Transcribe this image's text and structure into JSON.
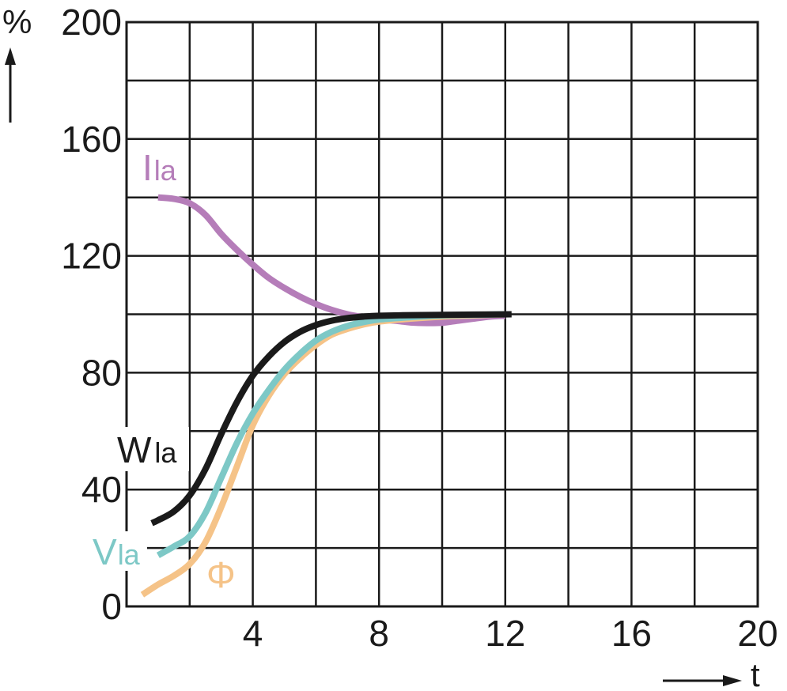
{
  "chart_data": {
    "type": "line",
    "title": "",
    "ylabel": "%",
    "xlabel": "t",
    "xlim": [
      0,
      20
    ],
    "ylim": [
      0,
      200
    ],
    "grid": true,
    "x_ticks": [
      4,
      8,
      12,
      16,
      20
    ],
    "x_tick_labels": [
      "4",
      "8",
      "12",
      "16",
      "20"
    ],
    "y_ticks": [
      0,
      40,
      80,
      120,
      160,
      200
    ],
    "y_tick_labels": [
      "0",
      "40",
      "80",
      "120",
      "160",
      "200"
    ],
    "series": [
      {
        "key": "i",
        "label_main": "I",
        "label_sub": "la",
        "color": "#b57db9",
        "x": [
          1.0,
          1.5,
          2.0,
          2.5,
          3.0,
          3.5,
          4.0,
          4.5,
          5.0,
          5.5,
          6.0,
          6.5,
          7.0,
          7.5,
          8.0,
          8.5,
          9.0,
          9.5,
          10.0,
          10.5,
          11.0,
          11.5,
          12.0
        ],
        "y": [
          140,
          139.5,
          138,
          134,
          127.5,
          122,
          117,
          112.5,
          109,
          106,
          103.5,
          101.5,
          100,
          99,
          98.2,
          97.8,
          97.2,
          97.0,
          97.1,
          97.8,
          98.5,
          99.2,
          99.5
        ]
      },
      {
        "key": "phi",
        "label_main": "Φ",
        "label_sub": "",
        "color": "#f5c388",
        "x": [
          0.5,
          1.0,
          1.5,
          2.0,
          2.5,
          3.0,
          3.5,
          4.0,
          4.5,
          5.0,
          5.5,
          6.0,
          6.5,
          7.0,
          7.5,
          8.0,
          9.0,
          10.0,
          11.0,
          12.0
        ],
        "y": [
          4,
          7.5,
          10.5,
          14.5,
          22,
          34,
          48,
          62,
          72,
          79.5,
          85,
          89.5,
          93,
          95,
          96.5,
          97.5,
          98.5,
          99.2,
          99.6,
          100
        ]
      },
      {
        "key": "v",
        "label_main": "V",
        "label_sub": "la",
        "color": "#7dc8c6",
        "x": [
          1.0,
          1.5,
          2.0,
          2.5,
          3.0,
          3.5,
          4.0,
          4.5,
          5.0,
          5.5,
          6.0,
          6.5,
          7.0,
          7.5,
          8.0,
          9.0,
          10.0,
          11.0,
          12.0
        ],
        "y": [
          17.5,
          20.5,
          24,
          32,
          44,
          56,
          66,
          74,
          81,
          86.5,
          91,
          94,
          96,
          97.3,
          98.2,
          99,
          99.6,
          99.8,
          100
        ]
      },
      {
        "key": "w",
        "label_main": "W",
        "label_sub": "la",
        "color": "#1a1a1a",
        "x": [
          0.8,
          1.0,
          1.5,
          2.0,
          2.5,
          3.0,
          3.5,
          4.0,
          4.5,
          5.0,
          5.5,
          6.0,
          6.5,
          7.0,
          7.5,
          8.0,
          9.0,
          10.0,
          11.0,
          12.2
        ],
        "y": [
          28.5,
          29.5,
          32.5,
          38,
          47,
          59,
          70,
          79,
          85.5,
          90.5,
          94,
          96.3,
          97.8,
          98.7,
          99.2,
          99.5,
          99.7,
          99.8,
          99.9,
          100
        ]
      }
    ]
  }
}
